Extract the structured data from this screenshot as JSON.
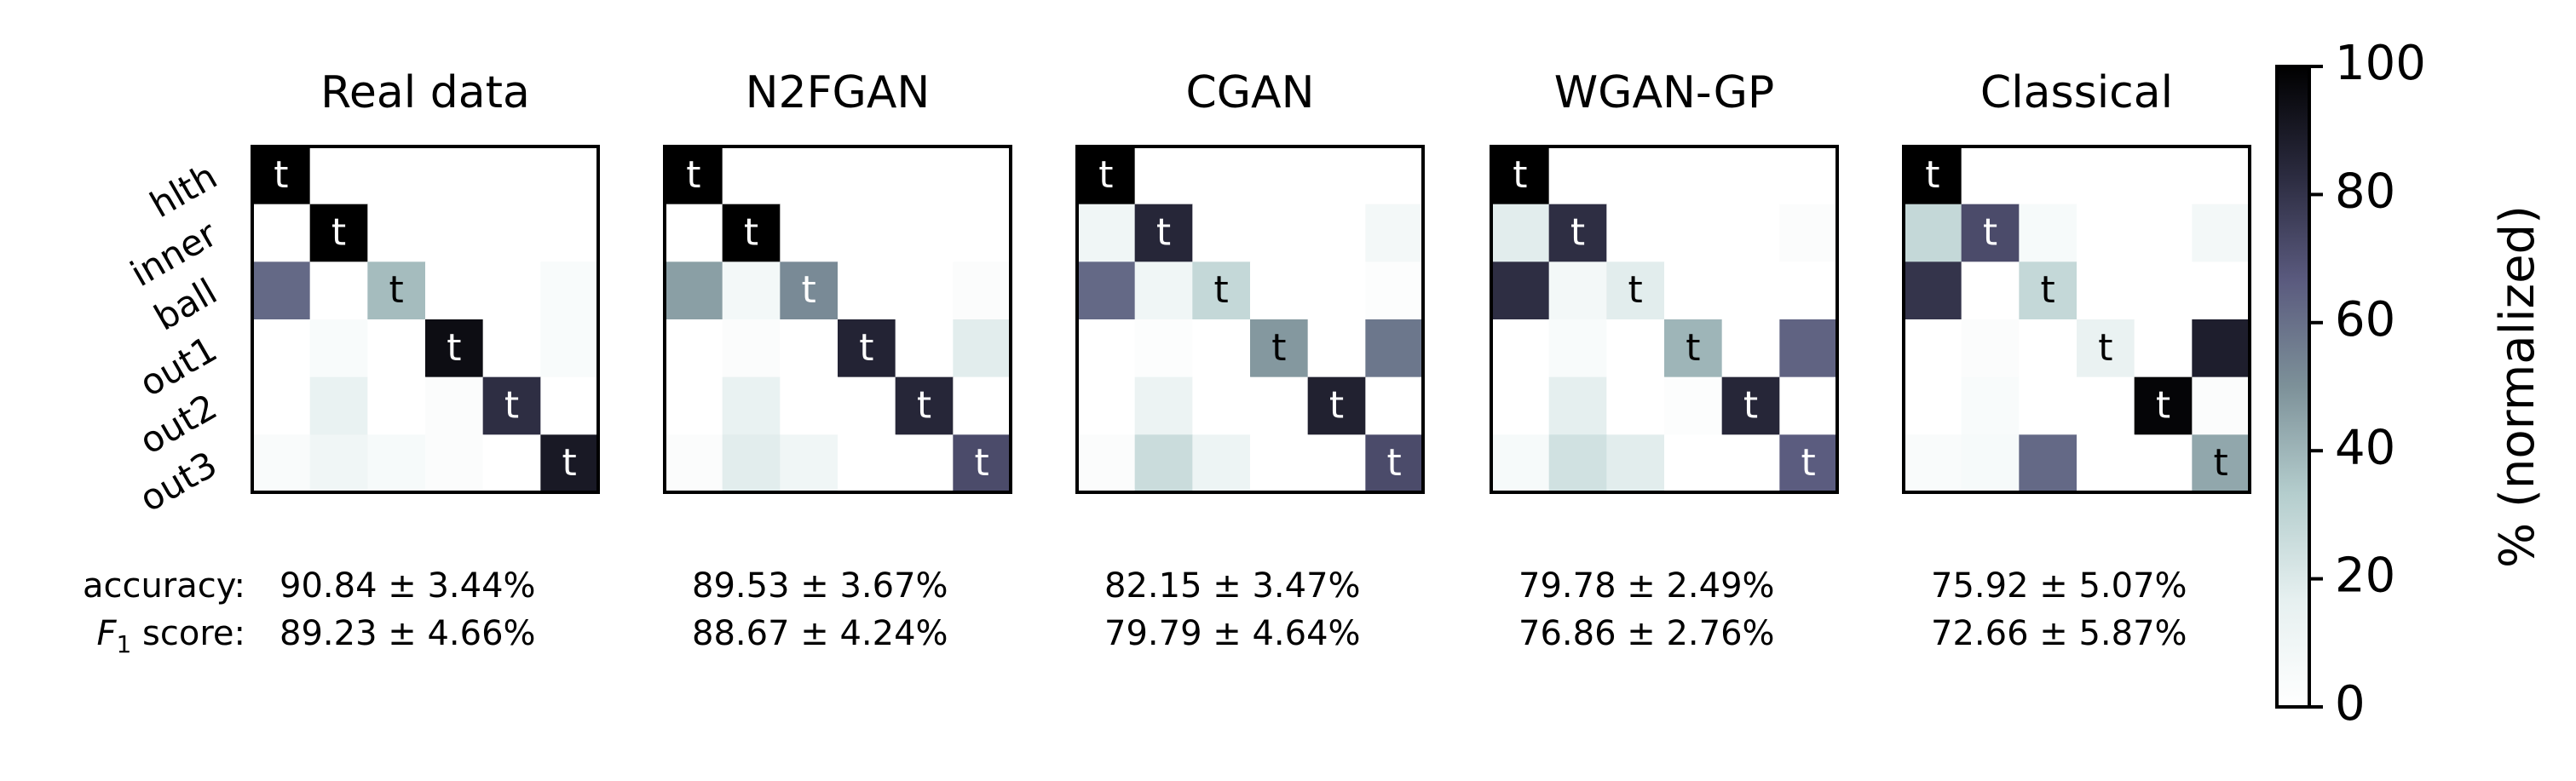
{
  "chart_data": {
    "type": "heatmap",
    "row_labels": [
      "hlth",
      "inner",
      "ball",
      "out1",
      "out2",
      "out3"
    ],
    "diagonal_label": "t",
    "colorbar": {
      "label": "% (normalized)",
      "ticks": [
        0,
        20,
        40,
        60,
        80,
        100
      ],
      "range": [
        0,
        100
      ],
      "colormap": [
        "#ffffff",
        "#e6f0f0",
        "#b4cdcd",
        "#7d9199",
        "#5a5a7e",
        "#2a2a3e",
        "#000000"
      ]
    },
    "metric_labels": {
      "accuracy": "accuracy:",
      "f1_prefix": "F",
      "f1_sub": "1",
      "f1_suffix": " score:"
    },
    "panels": [
      {
        "title": "Real data",
        "accuracy": "90.84 ± 3.44%",
        "f1": "89.23 ± 4.66%",
        "matrix": [
          [
            100,
            0,
            0,
            0,
            0,
            0
          ],
          [
            0,
            100,
            0,
            0,
            0,
            0
          ],
          [
            62,
            0,
            38,
            0,
            0,
            5
          ],
          [
            0,
            5,
            0,
            95,
            0,
            5
          ],
          [
            0,
            15,
            0,
            3,
            82,
            0
          ],
          [
            4,
            10,
            6,
            3,
            0,
            90
          ]
        ]
      },
      {
        "title": "N2FGAN",
        "accuracy": "89.53 ± 3.67%",
        "f1": "88.67 ± 4.24%",
        "matrix": [
          [
            100,
            0,
            0,
            0,
            0,
            0
          ],
          [
            0,
            100,
            0,
            0,
            0,
            0
          ],
          [
            46,
            8,
            52,
            0,
            0,
            3
          ],
          [
            0,
            3,
            0,
            86,
            0,
            18
          ],
          [
            0,
            15,
            0,
            0,
            85,
            0
          ],
          [
            3,
            18,
            10,
            0,
            0,
            72
          ]
        ]
      },
      {
        "title": "CGAN",
        "accuracy": "82.15 ± 3.47%",
        "f1": "79.79 ± 4.64%",
        "matrix": [
          [
            100,
            0,
            0,
            0,
            0,
            0
          ],
          [
            10,
            85,
            0,
            0,
            0,
            8
          ],
          [
            62,
            10,
            28,
            0,
            0,
            2
          ],
          [
            0,
            2,
            0,
            48,
            0,
            58
          ],
          [
            0,
            13,
            0,
            0,
            87,
            0
          ],
          [
            3,
            26,
            12,
            0,
            0,
            72
          ]
        ]
      },
      {
        "title": "WGAN-GP",
        "accuracy": "79.78 ± 2.49%",
        "f1": "76.86 ± 2.76%",
        "matrix": [
          [
            100,
            0,
            0,
            0,
            0,
            0
          ],
          [
            18,
            82,
            0,
            0,
            0,
            3
          ],
          [
            82,
            8,
            18,
            0,
            0,
            0
          ],
          [
            0,
            5,
            0,
            40,
            0,
            64
          ],
          [
            0,
            17,
            0,
            2,
            85,
            0
          ],
          [
            6,
            24,
            18,
            0,
            0,
            66
          ]
        ]
      },
      {
        "title": "Classical",
        "accuracy": "75.92 ± 5.07%",
        "f1": "72.66 ± 5.87%",
        "matrix": [
          [
            100,
            0,
            0,
            0,
            0,
            0
          ],
          [
            28,
            72,
            6,
            0,
            0,
            8
          ],
          [
            80,
            0,
            28,
            0,
            0,
            0
          ],
          [
            0,
            3,
            0,
            14,
            0,
            88
          ],
          [
            0,
            5,
            0,
            0,
            98,
            3
          ],
          [
            4,
            6,
            62,
            0,
            0,
            44
          ]
        ]
      }
    ]
  }
}
